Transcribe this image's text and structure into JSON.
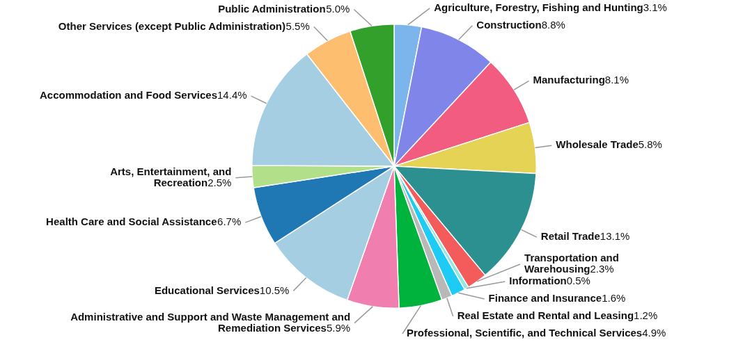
{
  "chart_data": {
    "type": "pie",
    "categories": [
      "Agriculture, Forestry, Fishing and Hunting",
      "Construction",
      "Manufacturing",
      "Wholesale Trade",
      "Retail Trade",
      "Transportation and Warehousing",
      "Information",
      "Finance and Insurance",
      "Real Estate and Rental and Leasing",
      "Professional, Scientific, and Technical Services",
      "Administrative and Support and Waste Management and Remediation Services",
      "Educational Services",
      "Health Care and Social Assistance",
      "Arts, Entertainment, and Recreation",
      "Accommodation and Food Services",
      "Other Services (except Public Administration)",
      "Public Administration"
    ],
    "values": [
      3.1,
      8.8,
      8.1,
      5.8,
      13.1,
      2.3,
      0.5,
      1.6,
      1.2,
      4.9,
      5.9,
      10.5,
      6.7,
      2.5,
      14.4,
      5.5,
      5.0
    ],
    "value_labels": [
      "3.1%",
      "8.8%",
      "8.1%",
      "5.8%",
      "13.1%",
      "2.3%",
      "0.5%",
      "1.6%",
      "1.2%",
      "4.9%",
      "5.9%",
      "10.5%",
      "6.7%",
      "2.5%",
      "14.4%",
      "5.5%",
      "5.0%"
    ],
    "colors": [
      "#7cb5ec",
      "#8085e9",
      "#f15c80",
      "#e4d354",
      "#2b908f",
      "#f45b5b",
      "#91e8e1",
      "#1ecbf5",
      "#b8b8b8",
      "#00b33c",
      "#f07fb0",
      "#a6cee3",
      "#1f78b4",
      "#b2df8a",
      "#a6cee3",
      "#fdbf6f",
      "#33a02c"
    ],
    "legend": false
  }
}
